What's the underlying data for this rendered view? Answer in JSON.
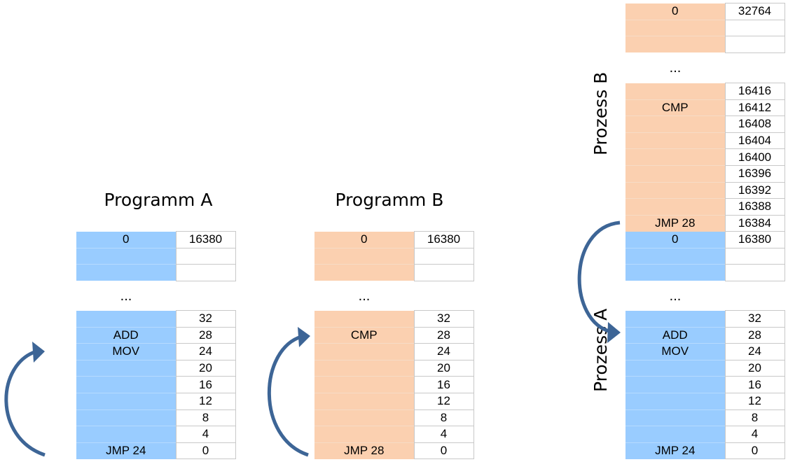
{
  "programA": {
    "title": "Programm A",
    "top": {
      "code": [
        "0",
        "",
        ""
      ],
      "addr": [
        "16380",
        "",
        ""
      ]
    },
    "dots": "...",
    "bottom": {
      "code": [
        "",
        "ADD",
        "MOV",
        "",
        "",
        "",
        "",
        "",
        "JMP 24"
      ],
      "addr": [
        "32",
        "28",
        "24",
        "20",
        "16",
        "12",
        "8",
        "4",
        "0"
      ]
    }
  },
  "programB": {
    "title": "Programm B",
    "top": {
      "code": [
        "0",
        "",
        ""
      ],
      "addr": [
        "16380",
        "",
        ""
      ]
    },
    "dots": "...",
    "bottom": {
      "code": [
        "",
        "CMP",
        "",
        "",
        "",
        "",
        "",
        "",
        "JMP 28"
      ],
      "addr": [
        "32",
        "28",
        "24",
        "20",
        "16",
        "12",
        "8",
        "4",
        "0"
      ]
    }
  },
  "memory": {
    "top": {
      "code": [
        "0",
        "",
        ""
      ],
      "addr": [
        "32764",
        "",
        ""
      ]
    },
    "dots1": "...",
    "procB": {
      "label": "Prozess B",
      "code": [
        "",
        "CMP",
        "",
        "",
        "",
        "",
        "",
        "",
        "JMP 28"
      ],
      "addr": [
        "16416",
        "16412",
        "16408",
        "16404",
        "16400",
        "16396",
        "16392",
        "16388",
        "16384"
      ]
    },
    "procA_top": {
      "code": [
        "0",
        "",
        ""
      ],
      "addr": [
        "16380",
        "",
        ""
      ]
    },
    "dots2": "...",
    "procA": {
      "label": "Prozess A",
      "code": [
        "",
        "ADD",
        "MOV",
        "",
        "",
        "",
        "",
        "",
        "JMP 24"
      ],
      "addr": [
        "32",
        "28",
        "24",
        "20",
        "16",
        "12",
        "8",
        "4",
        "0"
      ]
    }
  },
  "colors": {
    "blue": "#99ccff",
    "orange": "#fbd0b0",
    "arrow": "#3d6596"
  }
}
